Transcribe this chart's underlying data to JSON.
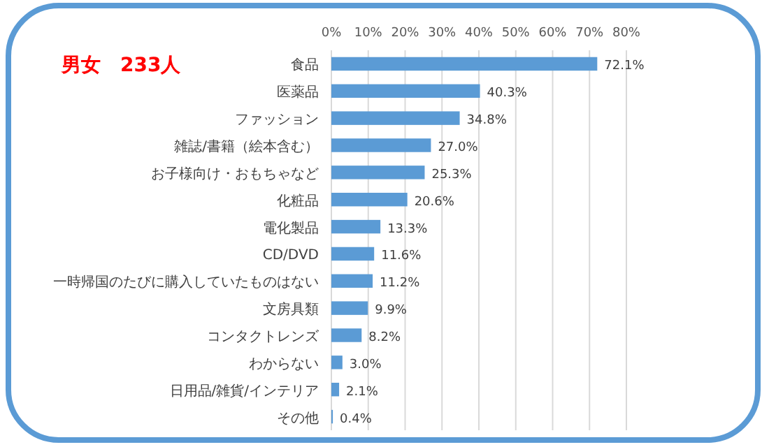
{
  "chart_data": {
    "type": "bar",
    "orientation": "horizontal",
    "title": "男女　233人",
    "categories": [
      "食品",
      "医薬品",
      "ファッション",
      "雑誌/書籍（絵本含む）",
      "お子様向け・おもちゃなど",
      "化粧品",
      "電化製品",
      "CD/DVD",
      "一時帰国のたびに購入していたものはない",
      "文房具類",
      "コンタクトレンズ",
      "わからない",
      "日用品/雑貨/インテリア",
      "その他"
    ],
    "values": [
      72.1,
      40.3,
      34.8,
      27.0,
      25.3,
      20.6,
      13.3,
      11.6,
      11.2,
      9.9,
      8.2,
      3.0,
      2.1,
      0.4
    ],
    "color": "#5b9bd5",
    "xlim": [
      0,
      80
    ],
    "xticks": [
      {
        "value": 0,
        "label": "0%"
      },
      {
        "value": 10,
        "label": "10%"
      },
      {
        "value": 20,
        "label": "20%"
      },
      {
        "value": 30,
        "label": "30%"
      },
      {
        "value": 40,
        "label": "40%"
      },
      {
        "value": 50,
        "label": "50%"
      },
      {
        "value": 60,
        "label": "60%"
      },
      {
        "value": 70,
        "label": "70%"
      },
      {
        "value": 80,
        "label": "80%"
      }
    ],
    "value_labels": [
      "72.1%",
      "40.3%",
      "34.8%",
      "27.0%",
      "25.3%",
      "20.6%",
      "13.3%",
      "11.6%",
      "11.2%",
      "9.9%",
      "8.2%",
      "3.0%",
      "2.1%",
      "0.4%"
    ],
    "grid": "x"
  }
}
